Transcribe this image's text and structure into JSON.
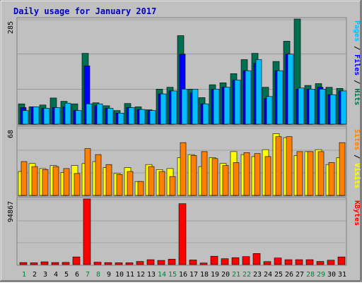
{
  "colors": {
    "background": "#c0c0c0",
    "hits": "#006f4f",
    "files": "#0000ff",
    "pages": "#00bfff",
    "visits": "#ffff00",
    "sites": "#ff8000",
    "kbytes": "#ff0000",
    "title": "#0000c0",
    "weekend_day": "#00803f"
  },
  "chart_data": {
    "type": "bar",
    "title": "Daily usage for January 2017",
    "categories": [
      "1",
      "2",
      "3",
      "4",
      "5",
      "6",
      "7",
      "8",
      "9",
      "10",
      "11",
      "12",
      "13",
      "14",
      "15",
      "16",
      "17",
      "18",
      "19",
      "20",
      "21",
      "22",
      "23",
      "24",
      "25",
      "26",
      "27",
      "28",
      "29",
      "30",
      "31"
    ],
    "weekend_days": [
      "1",
      "7",
      "8",
      "14",
      "15",
      "21",
      "22",
      "28",
      "29"
    ],
    "panels": [
      {
        "id": "pages-files-hits",
        "max_label": "285",
        "ylim": [
          0,
          285
        ],
        "axis_label_parts": [
          "Pages",
          " / ",
          "Files",
          " / ",
          "Hits"
        ],
        "axis_label_colors": [
          "#00bfff",
          "#000000",
          "#0000ff",
          "#000000",
          "#006f4f"
        ],
        "series": [
          {
            "name": "Hits",
            "color": "#006f4f",
            "values": [
              55,
              47,
              52,
              71,
              62,
              55,
              192,
              58,
              50,
              37,
              56,
              47,
              39,
              95,
              100,
              240,
              95,
              72,
              107,
              112,
              137,
              175,
              192,
              100,
              170,
              225,
              285,
              105,
              110,
              100,
              97
            ]
          },
          {
            "name": "Files",
            "color": "#0000ff",
            "values": [
              45,
              47,
              43,
              45,
              47,
              37,
              158,
              50,
              43,
              30,
              45,
              40,
              37,
              82,
              90,
              190,
              85,
              55,
              95,
              100,
              120,
              145,
              165,
              70,
              145,
              190,
              95,
              95,
              100,
              80,
              90
            ]
          },
          {
            "name": "Pages",
            "color": "#00bfff",
            "values": [
              37,
              47,
              43,
              45,
              57,
              37,
              55,
              55,
              43,
              30,
              45,
              40,
              37,
              82,
              90,
              95,
              95,
              55,
              95,
              100,
              120,
              145,
              175,
              75,
              145,
              190,
              98,
              95,
              95,
              80,
              90
            ]
          }
        ]
      },
      {
        "id": "sites-visits",
        "max_label": "68",
        "ylim": [
          0,
          68
        ],
        "axis_label_parts": [
          "Sites",
          " / ",
          "Visits"
        ],
        "axis_label_colors": [
          "#ff8000",
          "#000000",
          "#ffff00"
        ],
        "series": [
          {
            "name": "Visits",
            "color": "#ffff00",
            "values": [
              24,
              32,
              27,
              30,
              23,
              30,
              32,
              34,
              28,
              22,
              28,
              14,
              31,
              26,
              27,
              38,
              41,
              29,
              38,
              32,
              44,
              41,
              39,
              46,
              62,
              58,
              40,
              44,
              46,
              31,
              38
            ]
          },
          {
            "name": "Sites",
            "color": "#ff8000",
            "values": [
              34,
              29,
              26,
              29,
              27,
              22,
              47,
              41,
              31,
              21,
              24,
              14,
              29,
              24,
              19,
              53,
              40,
              44,
              37,
              30,
              33,
              43,
              42,
              39,
              59,
              59,
              44,
              44,
              44,
              33,
              53
            ]
          }
        ]
      },
      {
        "id": "kbytes",
        "max_label": "94867",
        "ylim": [
          0,
          94867
        ],
        "axis_label_parts": [
          "KBytes"
        ],
        "axis_label_colors": [
          "#ff0000"
        ],
        "series": [
          {
            "name": "KBytes",
            "color": "#ff0000",
            "values": [
              3000,
              2600,
              4000,
              3000,
              3200,
              11000,
              94867,
              3500,
              2900,
              2600,
              2600,
              4500,
              7000,
              6000,
              7800,
              88000,
              6600,
              2200,
              12000,
              8500,
              10000,
              11500,
              16000,
              4300,
              9500,
              7000,
              7000,
              7000,
              4500,
              6300,
              11000
            ]
          }
        ]
      }
    ]
  }
}
